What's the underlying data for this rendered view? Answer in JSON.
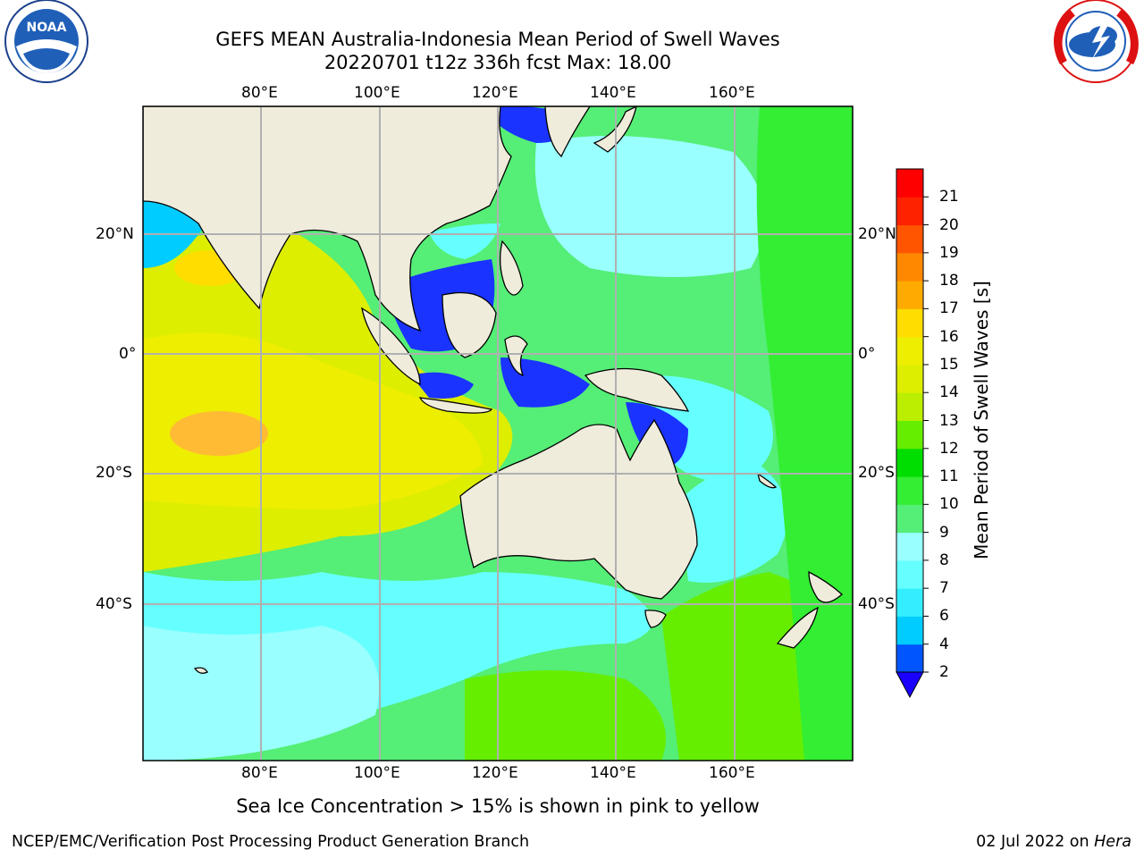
{
  "title": {
    "line1": "GEFS MEAN Australia-Indonesia Mean Period of Swell Waves",
    "line2": "20220701 t12z 336h fcst   Max: 18.00"
  },
  "logos": {
    "left": {
      "name": "noaa-logo",
      "text": "NOAA"
    },
    "right": {
      "name": "nws-logo",
      "text": "NATIONAL WEATHER SERVICE"
    }
  },
  "map": {
    "lon_labels_top": [
      "80°E",
      "100°E",
      "120°E",
      "140°E",
      "160°E"
    ],
    "lon_labels_bottom": [
      "80°E",
      "100°E",
      "120°E",
      "140°E",
      "160°E"
    ],
    "lat_labels_left": [
      "20°N",
      "0°",
      "20°S",
      "40°S"
    ],
    "lat_labels_right": [
      "20°N",
      "0°",
      "20°S",
      "40°S"
    ],
    "land_color": "#efecdc",
    "grid_color": "#b0b0b0"
  },
  "colorbar": {
    "title": "Mean Period of Swell Waves [s]",
    "ticks": [
      "2",
      "4",
      "6",
      "7",
      "8",
      "9",
      "10",
      "11",
      "12",
      "13",
      "14",
      "15",
      "16",
      "17",
      "18",
      "19",
      "20",
      "21"
    ],
    "colors": [
      "#0055ff",
      "#00ccff",
      "#33eeff",
      "#66ffff",
      "#99ffff",
      "#55ee77",
      "#33ee33",
      "#00dd00",
      "#66ee00",
      "#bbee00",
      "#ddee00",
      "#eeee00",
      "#ffdd00",
      "#ffaa00",
      "#ff8800",
      "#ff5500",
      "#ff2200",
      "#ff0000"
    ],
    "extend_color": "#1a00ff"
  },
  "footnote": "Sea Ice Concentration > 15% is shown in pink to yellow",
  "credit": "NCEP/EMC/Verification Post Processing Product Generation Branch",
  "date_prefix": "02 Jul 2022 on ",
  "date_machine": "Hera"
}
